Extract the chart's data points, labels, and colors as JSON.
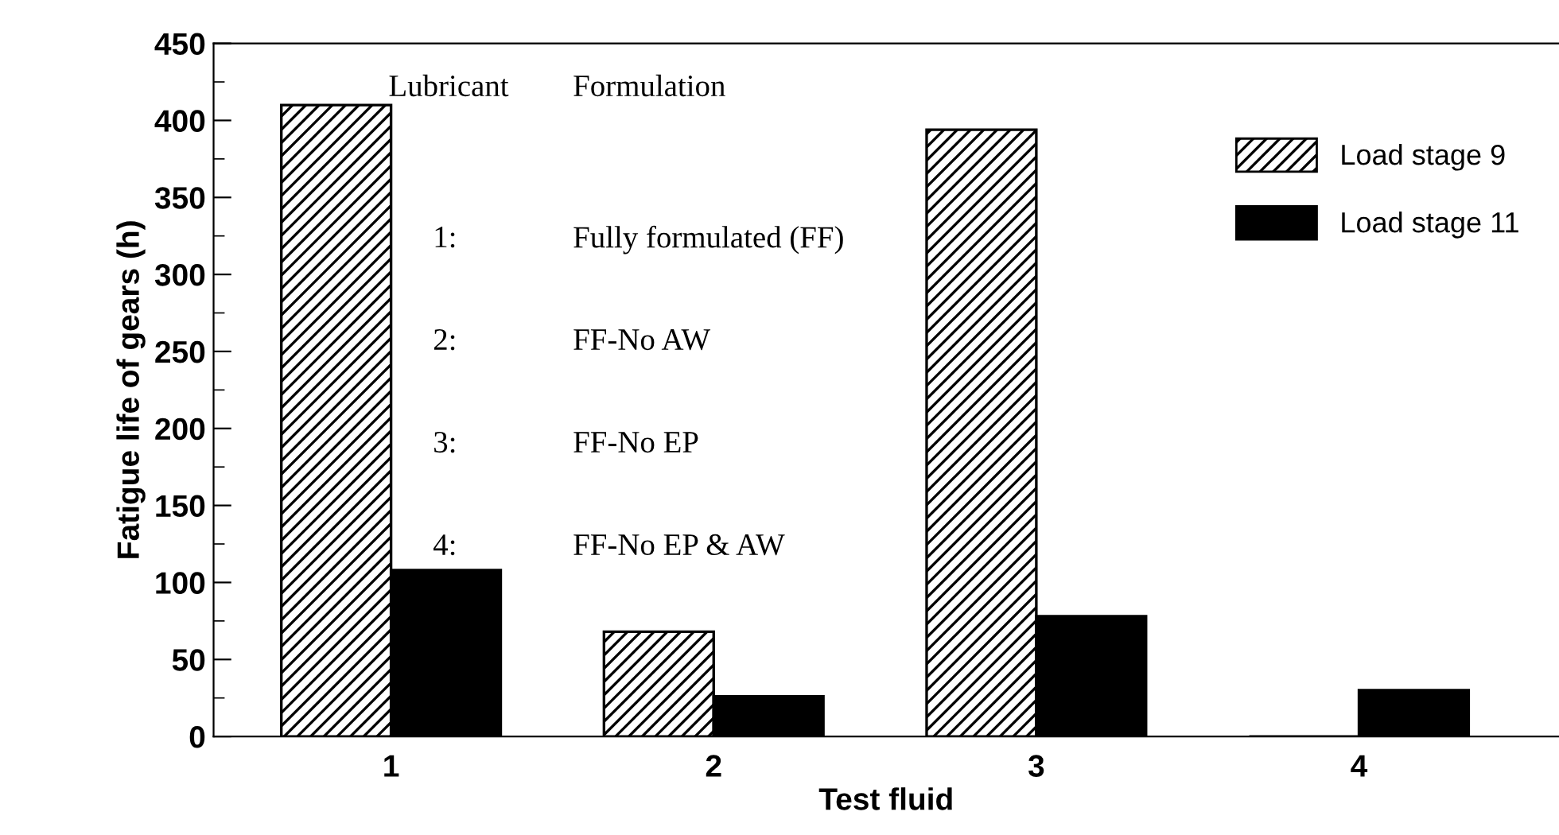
{
  "chart_data": {
    "type": "bar",
    "xlabel": "Test fluid",
    "ylabel": "Fatigue life of gears (h)",
    "categories": [
      "1",
      "2",
      "3",
      "4"
    ],
    "series": [
      {
        "name": "Load stage 9",
        "color": "#000000",
        "values": [
          410,
          68,
          394,
          0
        ]
      },
      {
        "name": "Load stage 11",
        "color": "#000000",
        "values": [
          108,
          26,
          78,
          30
        ]
      }
    ],
    "ylim": [
      0,
      450
    ],
    "yticks": [
      0,
      50,
      100,
      150,
      200,
      250,
      300,
      350,
      400,
      450
    ],
    "legend": "top right",
    "grid": false,
    "annotations": [
      "Lubricant",
      "Formulation",
      "1:",
      "Fully formulated (FF)",
      "2:",
      "FF-No AW",
      "3:",
      "FF-No EP",
      "4:",
      "FF-No EP & AW"
    ]
  }
}
